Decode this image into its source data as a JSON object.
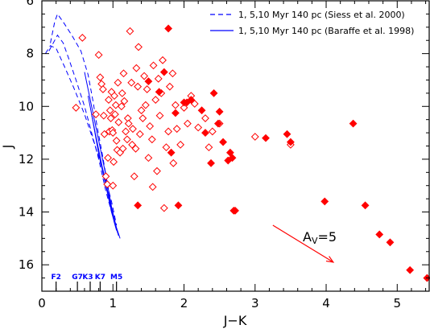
{
  "chart_data": {
    "type": "scatter",
    "xlabel": "J−K",
    "ylabel": "J",
    "xlim": [
      0,
      5.45
    ],
    "ylim": [
      17,
      6
    ],
    "xticks": [
      "0",
      "1",
      "2",
      "3",
      "4",
      "5"
    ],
    "yticks": [
      "6",
      "8",
      "10",
      "12",
      "14",
      "16"
    ],
    "grid": false,
    "legend_placement": "top-right",
    "colors": {
      "data": "#ff0000",
      "tracks": "#0000ff",
      "axes": "#000000",
      "reddening": "#ff0000"
    },
    "legend": [
      {
        "label": "1, 5,10 Myr 140 pc (Siess et al. 2000)",
        "style": "dashed"
      },
      {
        "label": "1, 5,10 Myr 140 pc (Baraffe et al. 1998)",
        "style": "solid"
      }
    ],
    "tracks": [
      {
        "source": "Siess et al. 2000",
        "age": "1 Myr",
        "style": "dashed",
        "points": [
          [
            0.12,
            7.6
          ],
          [
            0.18,
            6.8
          ],
          [
            0.22,
            6.5
          ],
          [
            0.3,
            6.8
          ],
          [
            0.42,
            7.3
          ],
          [
            0.55,
            7.9
          ],
          [
            0.65,
            8.8
          ],
          [
            0.72,
            9.8
          ],
          [
            0.78,
            10.8
          ],
          [
            0.85,
            11.8
          ],
          [
            0.92,
            12.9
          ],
          [
            0.98,
            13.8
          ]
        ]
      },
      {
        "source": "Siess et al. 2000",
        "age": "5 Myr",
        "style": "dashed",
        "points": [
          [
            0.1,
            7.9
          ],
          [
            0.22,
            7.3
          ],
          [
            0.3,
            7.6
          ],
          [
            0.38,
            8.2
          ],
          [
            0.48,
            9.0
          ],
          [
            0.6,
            10.0
          ],
          [
            0.7,
            11.0
          ],
          [
            0.8,
            12.0
          ],
          [
            0.9,
            13.2
          ],
          [
            1.0,
            14.2
          ]
        ]
      },
      {
        "source": "Siess et al. 2000",
        "age": "10 Myr",
        "style": "dashed",
        "points": [
          [
            0.05,
            8.0
          ],
          [
            0.12,
            7.7
          ],
          [
            0.2,
            7.8
          ],
          [
            0.32,
            8.5
          ],
          [
            0.45,
            9.3
          ],
          [
            0.6,
            10.3
          ],
          [
            0.75,
            11.5
          ],
          [
            0.88,
            12.6
          ],
          [
            0.98,
            13.6
          ],
          [
            1.05,
            14.5
          ]
        ]
      },
      {
        "source": "Baraffe et al. 1998",
        "age": "1 Myr",
        "style": "solid",
        "points": [
          [
            0.6,
            8.7
          ],
          [
            0.7,
            10.0
          ],
          [
            0.8,
            11.3
          ],
          [
            0.9,
            12.6
          ],
          [
            0.98,
            13.8
          ],
          [
            1.05,
            14.6
          ],
          [
            1.1,
            15.0
          ]
        ]
      },
      {
        "source": "Baraffe et al. 1998",
        "age": "5 Myr",
        "style": "solid",
        "points": [
          [
            0.65,
            9.6
          ],
          [
            0.75,
            11.0
          ],
          [
            0.85,
            12.3
          ],
          [
            0.95,
            13.5
          ],
          [
            1.02,
            14.4
          ],
          [
            1.08,
            14.9
          ]
        ]
      },
      {
        "source": "Baraffe et al. 1998",
        "age": "10 Myr",
        "style": "solid",
        "points": [
          [
            0.7,
            10.3
          ],
          [
            0.8,
            11.8
          ],
          [
            0.9,
            13.0
          ],
          [
            0.98,
            14.0
          ],
          [
            1.05,
            14.7
          ]
        ]
      }
    ],
    "open_diamonds": [
      [
        0.48,
        10.05
      ],
      [
        0.57,
        7.4
      ],
      [
        0.76,
        10.3
      ],
      [
        0.8,
        8.05
      ],
      [
        0.82,
        8.9
      ],
      [
        0.84,
        9.15
      ],
      [
        0.86,
        9.35
      ],
      [
        0.87,
        10.35
      ],
      [
        0.88,
        11.05
      ],
      [
        0.9,
        12.65
      ],
      [
        0.92,
        12.95
      ],
      [
        0.93,
        11.95
      ],
      [
        0.94,
        9.75
      ],
      [
        0.95,
        10.95
      ],
      [
        0.96,
        10.15
      ],
      [
        0.97,
        10.45
      ],
      [
        0.98,
        9.45
      ],
      [
        0.99,
        10.9
      ],
      [
        1.0,
        11.0
      ],
      [
        1.0,
        13.0
      ],
      [
        1.01,
        12.1
      ],
      [
        1.02,
        9.6
      ],
      [
        1.03,
        10.3
      ],
      [
        1.04,
        9.95
      ],
      [
        1.05,
        11.3
      ],
      [
        1.06,
        11.65
      ],
      [
        1.07,
        9.1
      ],
      [
        1.08,
        10.6
      ],
      [
        1.1,
        11.75
      ],
      [
        1.12,
        10.0
      ],
      [
        1.13,
        9.5
      ],
      [
        1.14,
        11.6
      ],
      [
        1.15,
        8.75
      ],
      [
        1.16,
        9.8
      ],
      [
        1.18,
        10.95
      ],
      [
        1.2,
        11.25
      ],
      [
        1.21,
        10.45
      ],
      [
        1.22,
        10.65
      ],
      [
        1.24,
        7.15
      ],
      [
        1.26,
        9.1
      ],
      [
        1.27,
        11.45
      ],
      [
        1.28,
        10.85
      ],
      [
        1.3,
        12.65
      ],
      [
        1.32,
        11.6
      ],
      [
        1.33,
        8.55
      ],
      [
        1.35,
        9.25
      ],
      [
        1.36,
        7.75
      ],
      [
        1.38,
        11.05
      ],
      [
        1.4,
        10.15
      ],
      [
        1.42,
        10.45
      ],
      [
        1.44,
        8.85
      ],
      [
        1.46,
        9.95
      ],
      [
        1.48,
        9.35
      ],
      [
        1.5,
        11.95
      ],
      [
        1.52,
        10.75
      ],
      [
        1.55,
        11.25
      ],
      [
        1.56,
        13.05
      ],
      [
        1.57,
        8.45
      ],
      [
        1.6,
        9.75
      ],
      [
        1.62,
        12.45
      ],
      [
        1.64,
        8.95
      ],
      [
        1.66,
        10.35
      ],
      [
        1.68,
        9.5
      ],
      [
        1.7,
        8.25
      ],
      [
        1.72,
        13.85
      ],
      [
        1.75,
        11.55
      ],
      [
        1.78,
        10.95
      ],
      [
        1.8,
        9.25
      ],
      [
        1.84,
        8.75
      ],
      [
        1.85,
        12.15
      ],
      [
        1.88,
        9.95
      ],
      [
        1.9,
        10.85
      ],
      [
        1.95,
        11.45
      ],
      [
        2.0,
        10.05
      ],
      [
        2.05,
        10.65
      ],
      [
        2.1,
        9.6
      ],
      [
        2.15,
        9.9
      ],
      [
        2.2,
        10.8
      ],
      [
        2.3,
        10.45
      ],
      [
        2.35,
        11.55
      ],
      [
        2.4,
        10.95
      ],
      [
        2.5,
        10.65
      ],
      [
        3.0,
        11.15
      ],
      [
        3.5,
        11.45
      ]
    ],
    "filled_diamonds": [
      [
        1.35,
        13.75
      ],
      [
        1.5,
        9.05
      ],
      [
        1.65,
        9.45
      ],
      [
        1.72,
        8.7
      ],
      [
        1.78,
        7.05
      ],
      [
        1.82,
        11.75
      ],
      [
        1.88,
        10.25
      ],
      [
        1.92,
        13.75
      ],
      [
        2.0,
        9.85
      ],
      [
        2.04,
        9.85
      ],
      [
        2.1,
        9.75
      ],
      [
        2.25,
        10.15
      ],
      [
        2.3,
        11.0
      ],
      [
        2.38,
        12.15
      ],
      [
        2.42,
        9.5
      ],
      [
        2.48,
        10.65
      ],
      [
        2.5,
        10.2
      ],
      [
        2.55,
        11.35
      ],
      [
        2.62,
        12.05
      ],
      [
        2.65,
        11.75
      ],
      [
        2.68,
        11.95
      ],
      [
        2.7,
        13.95
      ],
      [
        2.72,
        13.95
      ],
      [
        3.15,
        11.2
      ],
      [
        3.45,
        11.05
      ],
      [
        3.5,
        11.35
      ],
      [
        3.98,
        13.6
      ],
      [
        4.38,
        10.65
      ],
      [
        4.55,
        13.75
      ],
      [
        4.75,
        14.85
      ],
      [
        4.9,
        15.15
      ],
      [
        5.18,
        16.2
      ],
      [
        5.42,
        16.5
      ]
    ],
    "spectral_types": [
      {
        "label": "F2",
        "x": 0.2
      },
      {
        "label": "G7",
        "x": 0.5
      },
      {
        "label": "K3",
        "x": 0.68
      },
      {
        "label": "K7",
        "x": 0.82
      },
      {
        "label": "M5",
        "x": 1.05
      }
    ],
    "reddening_vector": {
      "label_main": "A",
      "label_sub": "V",
      "label_rest": "=5",
      "from": [
        3.25,
        14.5
      ],
      "to": [
        4.1,
        15.9
      ]
    }
  }
}
